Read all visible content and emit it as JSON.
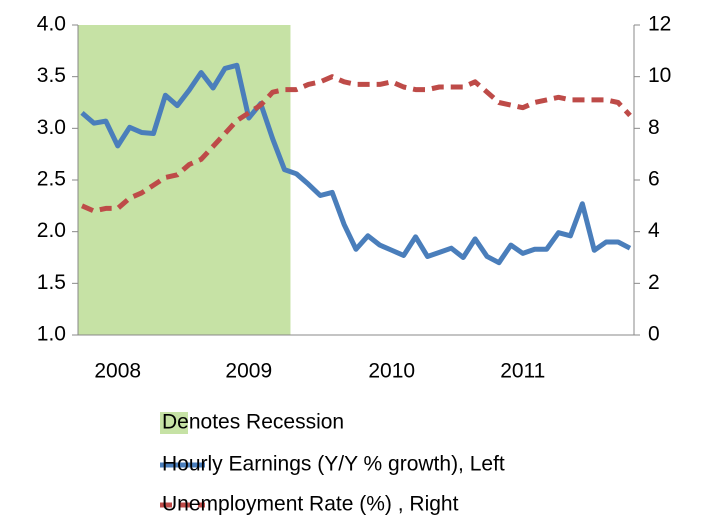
{
  "chart_data": {
    "type": "line",
    "categories": [
      null,
      null,
      null,
      "2008",
      null,
      null,
      null,
      null,
      null,
      null,
      null,
      null,
      null,
      null,
      "2009",
      null,
      null,
      null,
      null,
      null,
      null,
      null,
      null,
      null,
      null,
      null,
      "2010",
      null,
      null,
      null,
      null,
      null,
      null,
      null,
      null,
      null,
      null,
      "2011",
      null,
      null,
      null,
      null,
      null,
      null,
      null,
      null,
      null
    ],
    "recession": {
      "name": "Denotes Recession",
      "color": "#c6e2a5",
      "span": [
        0,
        17
      ]
    },
    "series": [
      {
        "name": "Hourly Earnings (Y/Y % growth), Left",
        "color": "#4a7ebb",
        "axis": "y",
        "values": [
          3.15,
          3.05,
          3.07,
          2.83,
          3.01,
          2.96,
          2.95,
          3.32,
          3.22,
          3.37,
          3.54,
          3.39,
          3.58,
          3.61,
          3.1,
          3.24,
          2.9,
          2.6,
          2.56,
          2.46,
          2.35,
          2.38,
          2.07,
          1.83,
          1.96,
          1.87,
          1.82,
          1.77,
          1.95,
          1.76,
          1.8,
          1.84,
          1.75,
          1.93,
          1.76,
          1.7,
          1.87,
          1.79,
          1.83,
          1.83,
          1.99,
          1.96,
          2.27,
          1.82,
          1.9,
          1.9,
          1.84
        ]
      },
      {
        "name": "Unemployment Rate (%) , Right",
        "color": "#be4b48",
        "axis": "y2",
        "dashed": true,
        "values": [
          5.0,
          4.8,
          4.9,
          4.9,
          5.3,
          5.5,
          5.8,
          6.1,
          6.2,
          6.6,
          6.8,
          7.3,
          7.8,
          8.3,
          8.6,
          8.9,
          9.4,
          9.5,
          9.5,
          9.7,
          9.8,
          10.0,
          9.8,
          9.7,
          9.7,
          9.7,
          9.8,
          9.6,
          9.5,
          9.5,
          9.6,
          9.6,
          9.6,
          9.8,
          9.4,
          9.0,
          8.9,
          8.8,
          9.0,
          9.1,
          9.2,
          9.1,
          9.1,
          9.1,
          9.1,
          9.0,
          8.5
        ]
      }
    ],
    "ylim": [
      1,
      4
    ],
    "yticks": [
      {
        "value": 1,
        "label": "1.0"
      },
      {
        "value": 1.5,
        "label": "1.5"
      },
      {
        "value": 2,
        "label": "2.0"
      },
      {
        "value": 2.5,
        "label": "2.5"
      },
      {
        "value": 3,
        "label": "3.0"
      },
      {
        "value": 3.5,
        "label": "3.5"
      },
      {
        "value": 4,
        "label": "4.0"
      }
    ],
    "y2lim": [
      0,
      12
    ],
    "y2ticks": [
      0,
      2,
      4,
      6,
      8,
      10,
      12
    ]
  }
}
